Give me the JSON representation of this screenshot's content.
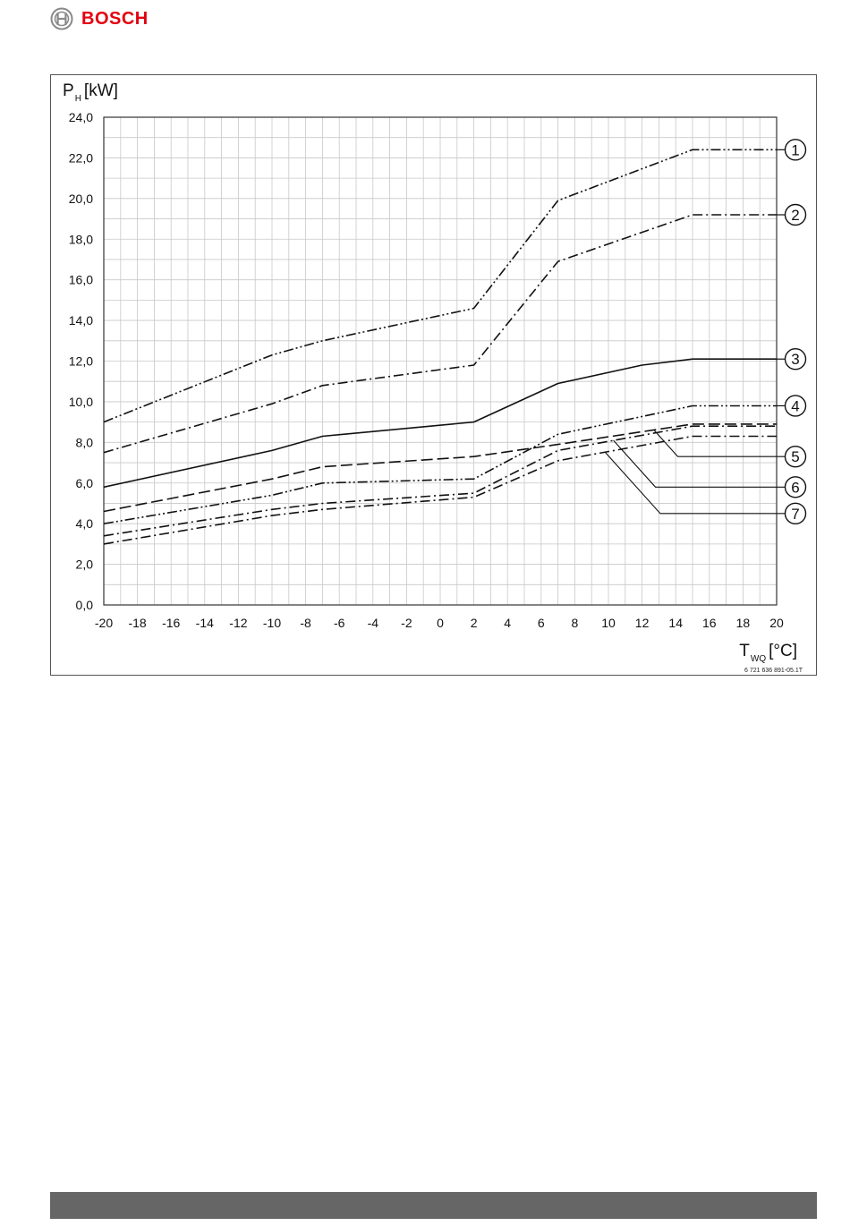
{
  "brand": {
    "name": "BOSCH",
    "color": "#e3000f",
    "logo_icon": "bosch-armature-icon"
  },
  "footer": {
    "color": "#666666"
  },
  "chart_data": {
    "type": "line",
    "title": "",
    "ylabel": "P",
    "ylabel_sub": "H",
    "ylabel_unit": "[kW]",
    "xlabel": "T",
    "xlabel_sub": "WQ",
    "xlabel_unit": "[°C]",
    "xlim": [
      -20,
      20
    ],
    "ylim": [
      0,
      24
    ],
    "x_ticks": [
      -20,
      -18,
      -16,
      -14,
      -12,
      -10,
      -8,
      -6,
      -4,
      -2,
      0,
      2,
      4,
      6,
      8,
      10,
      12,
      14,
      16,
      18,
      20
    ],
    "x_tick_labels": [
      "-20",
      "-18",
      "-16",
      "-14",
      "-12",
      "-10",
      "-8",
      "-6",
      "-4",
      "-2",
      "0",
      "2",
      "4",
      "6",
      "8",
      "10",
      "12",
      "14",
      "16",
      "18",
      "20"
    ],
    "y_ticks": [
      0,
      2,
      4,
      6,
      8,
      10,
      12,
      14,
      16,
      18,
      20,
      22,
      24
    ],
    "y_tick_labels": [
      "0,0",
      "2,0",
      "4,0",
      "6,0",
      "8,0",
      "10,0",
      "12,0",
      "14,0",
      "16,0",
      "18,0",
      "20,0",
      "22,0",
      "24,0"
    ],
    "grid": true,
    "figure_code": "6 721 636 891-05.1T",
    "series": [
      {
        "label": "1",
        "style": "dash-dot-dot",
        "x": [
          -20,
          -10,
          -7,
          2,
          7,
          15,
          20
        ],
        "y": [
          9.0,
          12.3,
          13.0,
          14.6,
          19.9,
          22.4,
          22.4
        ]
      },
      {
        "label": "2",
        "style": "dash-dot",
        "x": [
          -20,
          -10,
          -7,
          2,
          7,
          15,
          20
        ],
        "y": [
          7.5,
          9.9,
          10.8,
          11.8,
          16.9,
          19.2,
          19.2
        ]
      },
      {
        "label": "3",
        "style": "solid",
        "x": [
          -20,
          -10,
          -7,
          2,
          7,
          12,
          15,
          20
        ],
        "y": [
          5.8,
          7.6,
          8.3,
          9.0,
          10.9,
          11.8,
          12.1,
          12.1
        ]
      },
      {
        "label": "4",
        "style": "dash-dot-dot",
        "x": [
          -20,
          -10,
          -7,
          2,
          7,
          15,
          20
        ],
        "y": [
          4.0,
          5.4,
          6.0,
          6.2,
          8.4,
          9.8,
          9.8
        ]
      },
      {
        "label": "5",
        "style": "long-dash",
        "x": [
          -20,
          -10,
          -7,
          2,
          7,
          15,
          20
        ],
        "y": [
          4.6,
          6.2,
          6.8,
          7.3,
          7.9,
          8.9,
          8.9
        ]
      },
      {
        "label": "6",
        "style": "dash-dot",
        "x": [
          -20,
          -10,
          -7,
          2,
          7,
          15,
          20
        ],
        "y": [
          3.4,
          4.7,
          5.0,
          5.5,
          7.6,
          8.8,
          8.8
        ]
      },
      {
        "label": "7",
        "style": "dash-dot",
        "x": [
          -20,
          -10,
          -7,
          2,
          7,
          15,
          20
        ],
        "y": [
          3.0,
          4.4,
          4.7,
          5.3,
          7.1,
          8.3,
          8.3
        ]
      }
    ]
  }
}
